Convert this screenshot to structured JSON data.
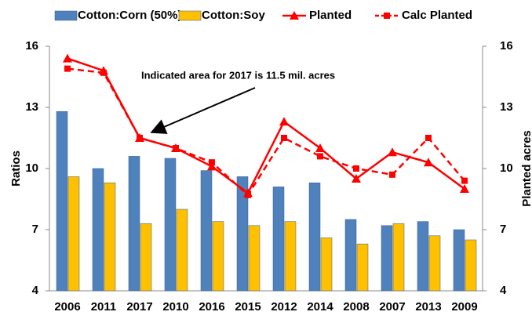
{
  "chart_data": {
    "type": "bar",
    "categories": [
      "2006",
      "2011",
      "2017",
      "2010",
      "2016",
      "2015",
      "2012",
      "2014",
      "2008",
      "2007",
      "2013",
      "2009"
    ],
    "series": [
      {
        "name": "Cotton:Corn (50%)",
        "type": "bar",
        "color": "#4f81bd",
        "values": [
          12.8,
          10.0,
          10.6,
          10.5,
          9.9,
          9.6,
          9.1,
          9.3,
          7.5,
          7.2,
          7.4,
          7.0
        ]
      },
      {
        "name": "Cotton:Soy",
        "type": "bar",
        "color": "#ffc000",
        "values": [
          9.6,
          9.3,
          7.3,
          8.0,
          7.4,
          7.2,
          7.4,
          6.6,
          6.3,
          7.3,
          6.7,
          6.5
        ]
      },
      {
        "name": "Planted",
        "type": "line",
        "axis": "y2",
        "color": "#ff0000",
        "marker": "triangle",
        "dashed": false,
        "values": [
          15.4,
          14.8,
          11.5,
          11.0,
          10.1,
          8.8,
          12.3,
          11.0,
          9.5,
          10.8,
          10.3,
          9.0
        ]
      },
      {
        "name": "Calc Planted",
        "type": "line",
        "axis": "y2",
        "color": "#ff0000",
        "marker": "square",
        "dashed": true,
        "values": [
          14.9,
          14.7,
          11.5,
          11.0,
          10.3,
          8.7,
          11.5,
          10.6,
          10.0,
          9.7,
          11.5,
          9.4
        ]
      }
    ],
    "ylabel": "Ratios",
    "y2label": "Planted acres",
    "ylim": [
      4,
      16
    ],
    "yticks": [
      4,
      7,
      10,
      13,
      16
    ],
    "y2lim": [
      4,
      16
    ],
    "y2ticks": [
      4,
      7,
      10,
      13,
      16
    ],
    "annotation": "Indicated area for 2017 is 11.5 mil. acres",
    "grid": false,
    "legend": "top"
  }
}
